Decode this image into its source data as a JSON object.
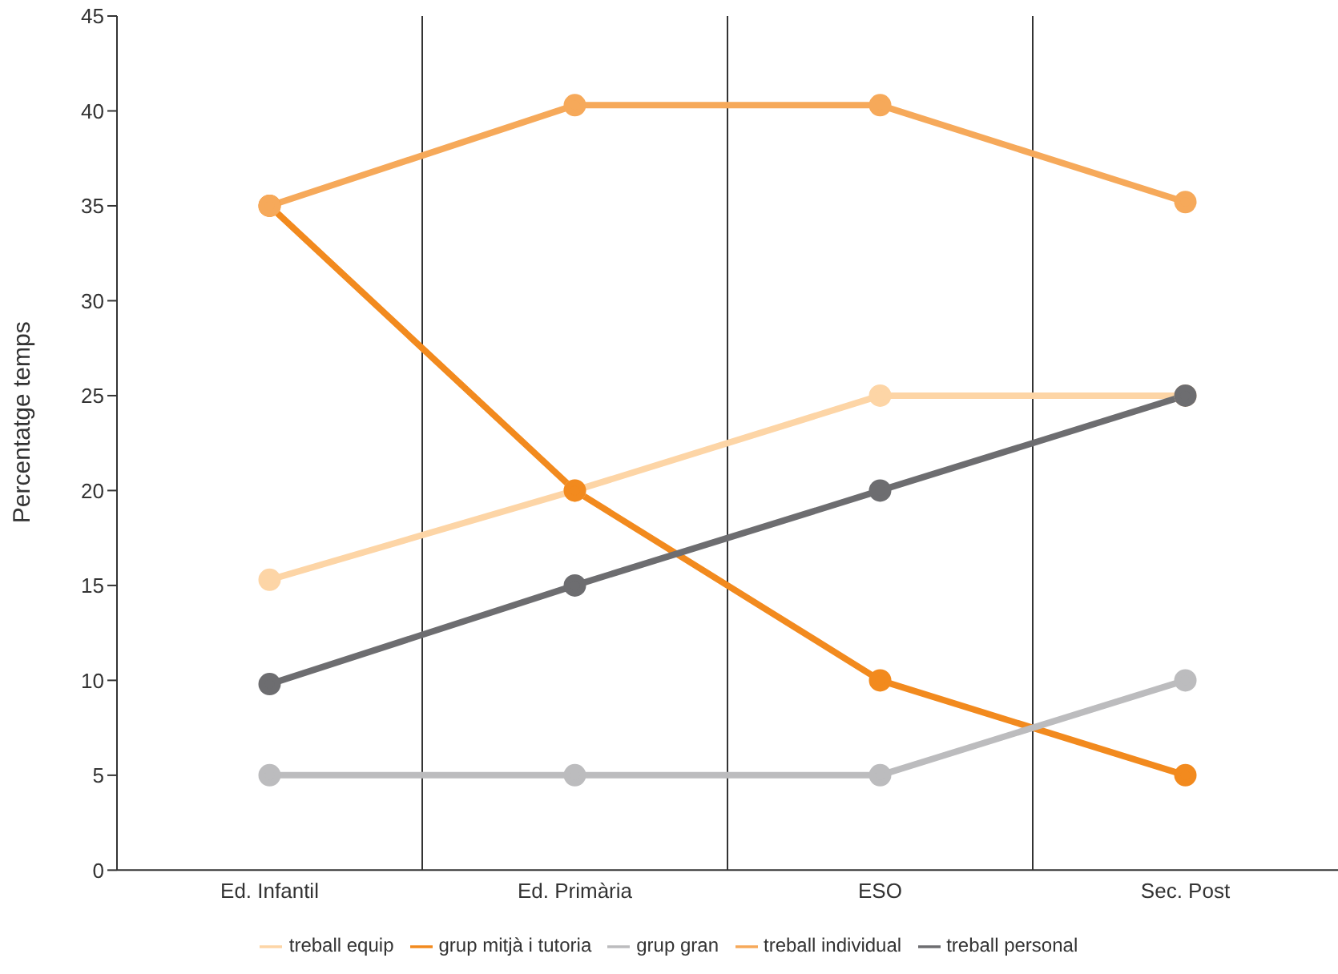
{
  "chart_data": {
    "type": "line",
    "ylabel": "Percentatge temps",
    "categories": [
      "Ed. Infantil",
      "Ed. Primària",
      "ESO",
      "Sec. Post"
    ],
    "series": [
      {
        "name": "treball equip",
        "color": "#fdd5a6",
        "values": [
          15.3,
          20,
          25,
          25
        ]
      },
      {
        "name": "grup mitjà i tutoria",
        "color": "#f28a1e",
        "values": [
          35,
          20,
          10,
          5
        ]
      },
      {
        "name": "grup gran",
        "color": "#bcbcbe",
        "values": [
          5,
          5,
          5,
          10
        ]
      },
      {
        "name": "treball individual",
        "color": "#f6a95a",
        "values": [
          35,
          40.3,
          40.3,
          35.2
        ]
      },
      {
        "name": "treball personal",
        "color": "#6d6d70",
        "values": [
          9.8,
          15,
          20,
          25
        ]
      }
    ],
    "ylim": [
      0,
      45
    ],
    "yticks": [
      0,
      5,
      10,
      15,
      20,
      25,
      30,
      35,
      40,
      45
    ],
    "grid": "x",
    "legend": "bottom",
    "marker": "circle",
    "line_style": "solid"
  }
}
